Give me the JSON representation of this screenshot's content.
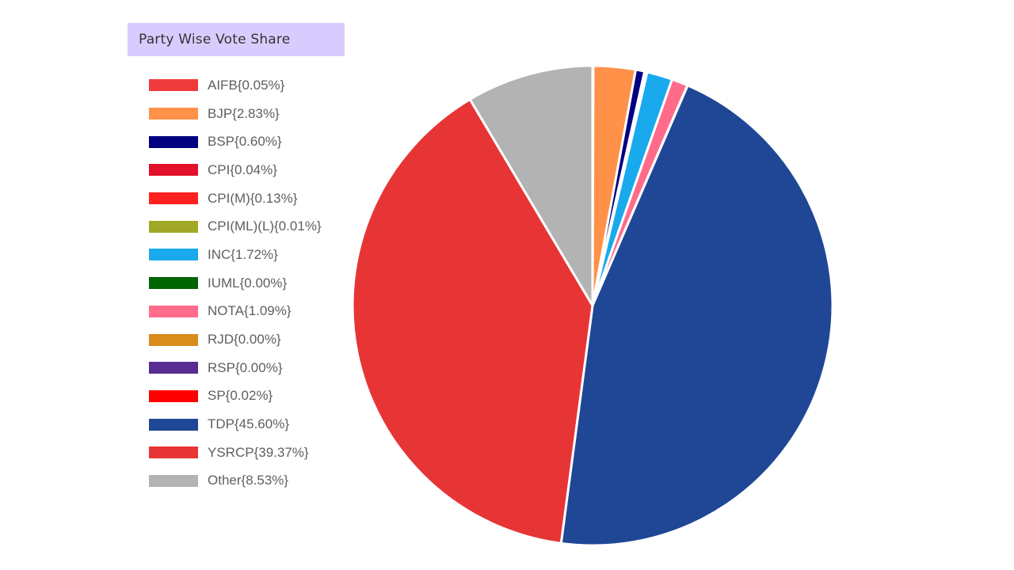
{
  "header": {
    "title": "Party Wise Vote Share"
  },
  "chart_data": {
    "type": "pie",
    "title": "Party Wise Vote Share",
    "legend_position": "left",
    "slices": [
      {
        "label": "AIFB{0.05%}",
        "name": "AIFB",
        "value": 0.05,
        "color": "#ef3b3b"
      },
      {
        "label": "BJP{2.83%}",
        "name": "BJP",
        "value": 2.83,
        "color": "#ff9248"
      },
      {
        "label": "BSP{0.60%}",
        "name": "BSP",
        "value": 0.6,
        "color": "#000080"
      },
      {
        "label": "CPI{0.04%}",
        "name": "CPI",
        "value": 0.04,
        "color": "#e2102a"
      },
      {
        "label": "CPI(M){0.13%}",
        "name": "CPI(M)",
        "value": 0.13,
        "color": "#ff2020"
      },
      {
        "label": "CPI(ML)(L){0.01%}",
        "name": "CPI(ML)(L)",
        "value": 0.01,
        "color": "#a0a826"
      },
      {
        "label": "INC{1.72%}",
        "name": "INC",
        "value": 1.72,
        "color": "#19aaed"
      },
      {
        "label": "IUML{0.00%}",
        "name": "IUML",
        "value": 0.0,
        "color": "#006400"
      },
      {
        "label": "NOTA{1.09%}",
        "name": "NOTA",
        "value": 1.09,
        "color": "#ff6b8a"
      },
      {
        "label": "RJD{0.00%}",
        "name": "RJD",
        "value": 0.0,
        "color": "#d98c1c"
      },
      {
        "label": "RSP{0.00%}",
        "name": "RSP",
        "value": 0.0,
        "color": "#582d91"
      },
      {
        "label": "SP{0.02%}",
        "name": "SP",
        "value": 0.02,
        "color": "#ff0000"
      },
      {
        "label": "TDP{45.60%}",
        "name": "TDP",
        "value": 45.6,
        "color": "#1f4795"
      },
      {
        "label": "YSRCP{39.37%}",
        "name": "YSRCP",
        "value": 39.37,
        "color": "#e73535"
      },
      {
        "label": "Other{8.53%}",
        "name": "Other",
        "value": 8.53,
        "color": "#b3b3b3"
      }
    ]
  }
}
